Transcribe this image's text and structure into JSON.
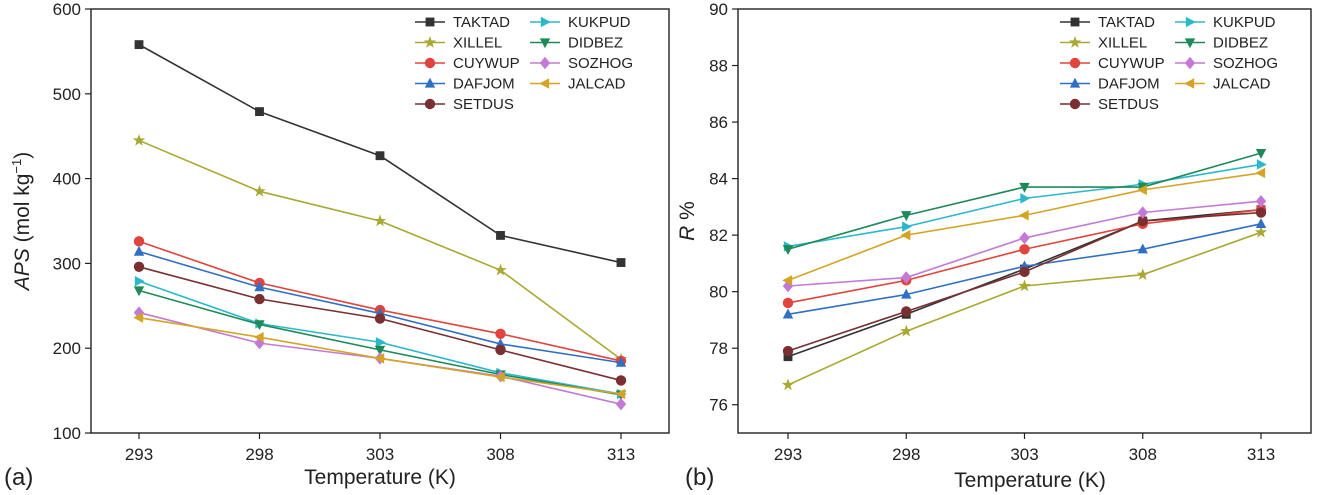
{
  "chart_data": [
    {
      "type": "line",
      "panel_label": "(a)",
      "title": "",
      "xlabel": "Temperature (K)",
      "ylabel_main": "APS",
      "ylabel_unit": " (mol kg",
      "ylabel_sup": "−1",
      "ylabel_close": ")",
      "categories": [
        "293",
        "298",
        "303",
        "308",
        "313"
      ],
      "yticks": [
        "100",
        "200",
        "300",
        "400",
        "500",
        "600"
      ],
      "ylim": [
        100,
        600
      ],
      "legend_position": "top-right",
      "series": [
        {
          "name": "TAKTAD",
          "color": "#333333",
          "marker": "square",
          "values": [
            558,
            479,
            427,
            333,
            301
          ]
        },
        {
          "name": "XILLEL",
          "color": "#a8a832",
          "marker": "star",
          "values": [
            445,
            385,
            350,
            292,
            187
          ]
        },
        {
          "name": "CUYWUP",
          "color": "#e0443c",
          "marker": "circle",
          "values": [
            326,
            277,
            245,
            217,
            185
          ]
        },
        {
          "name": "DAFJOM",
          "color": "#2f6fc4",
          "marker": "triangle-up",
          "values": [
            314,
            272,
            241,
            205,
            183
          ]
        },
        {
          "name": "SETDUS",
          "color": "#7a3030",
          "marker": "circle",
          "values": [
            296,
            258,
            235,
            198,
            162
          ]
        },
        {
          "name": "KUKPUD",
          "color": "#2cb8cc",
          "marker": "triangle-right",
          "values": [
            279,
            229,
            207,
            171,
            146
          ]
        },
        {
          "name": "DIDBEZ",
          "color": "#1e8a5a",
          "marker": "triangle-down",
          "values": [
            268,
            228,
            198,
            169,
            145
          ]
        },
        {
          "name": "SOZHOG",
          "color": "#c27ad6",
          "marker": "diamond",
          "values": [
            242,
            206,
            188,
            167,
            134
          ]
        },
        {
          "name": "JALCAD",
          "color": "#d4a422",
          "marker": "triangle-left",
          "values": [
            236,
            213,
            188,
            166,
            146
          ]
        }
      ]
    },
    {
      "type": "line",
      "panel_label": "(b)",
      "title": "",
      "xlabel": "Temperature (K)",
      "ylabel_main": "R",
      "ylabel_unit": " %",
      "ylabel_sup": "",
      "ylabel_close": "",
      "categories": [
        "293",
        "298",
        "303",
        "308",
        "313"
      ],
      "yticks": [
        "76",
        "78",
        "80",
        "82",
        "84",
        "86",
        "88",
        "90"
      ],
      "ylim": [
        75,
        90
      ],
      "legend_position": "top-right",
      "series": [
        {
          "name": "TAKTAD",
          "color": "#333333",
          "marker": "square",
          "values": [
            77.7,
            79.2,
            80.8,
            82.5,
            82.9
          ]
        },
        {
          "name": "XILLEL",
          "color": "#a8a832",
          "marker": "star",
          "values": [
            76.7,
            78.6,
            80.2,
            80.6,
            82.1
          ]
        },
        {
          "name": "CUYWUP",
          "color": "#e0443c",
          "marker": "circle",
          "values": [
            79.6,
            80.4,
            81.5,
            82.4,
            82.9
          ]
        },
        {
          "name": "DAFJOM",
          "color": "#2f6fc4",
          "marker": "triangle-up",
          "values": [
            79.2,
            79.9,
            80.9,
            81.5,
            82.4
          ]
        },
        {
          "name": "SETDUS",
          "color": "#7a3030",
          "marker": "circle",
          "values": [
            77.9,
            79.3,
            80.7,
            82.5,
            82.8
          ]
        },
        {
          "name": "KUKPUD",
          "color": "#2cb8cc",
          "marker": "triangle-right",
          "values": [
            81.6,
            82.3,
            83.3,
            83.8,
            84.5
          ]
        },
        {
          "name": "DIDBEZ",
          "color": "#1e8a5a",
          "marker": "triangle-down",
          "values": [
            81.5,
            82.7,
            83.7,
            83.7,
            84.9
          ]
        },
        {
          "name": "SOZHOG",
          "color": "#c27ad6",
          "marker": "diamond",
          "values": [
            80.2,
            80.5,
            81.9,
            82.8,
            83.2
          ]
        },
        {
          "name": "JALCAD",
          "color": "#d4a422",
          "marker": "triangle-left",
          "values": [
            80.4,
            82.0,
            82.7,
            83.6,
            84.2
          ]
        }
      ]
    }
  ]
}
